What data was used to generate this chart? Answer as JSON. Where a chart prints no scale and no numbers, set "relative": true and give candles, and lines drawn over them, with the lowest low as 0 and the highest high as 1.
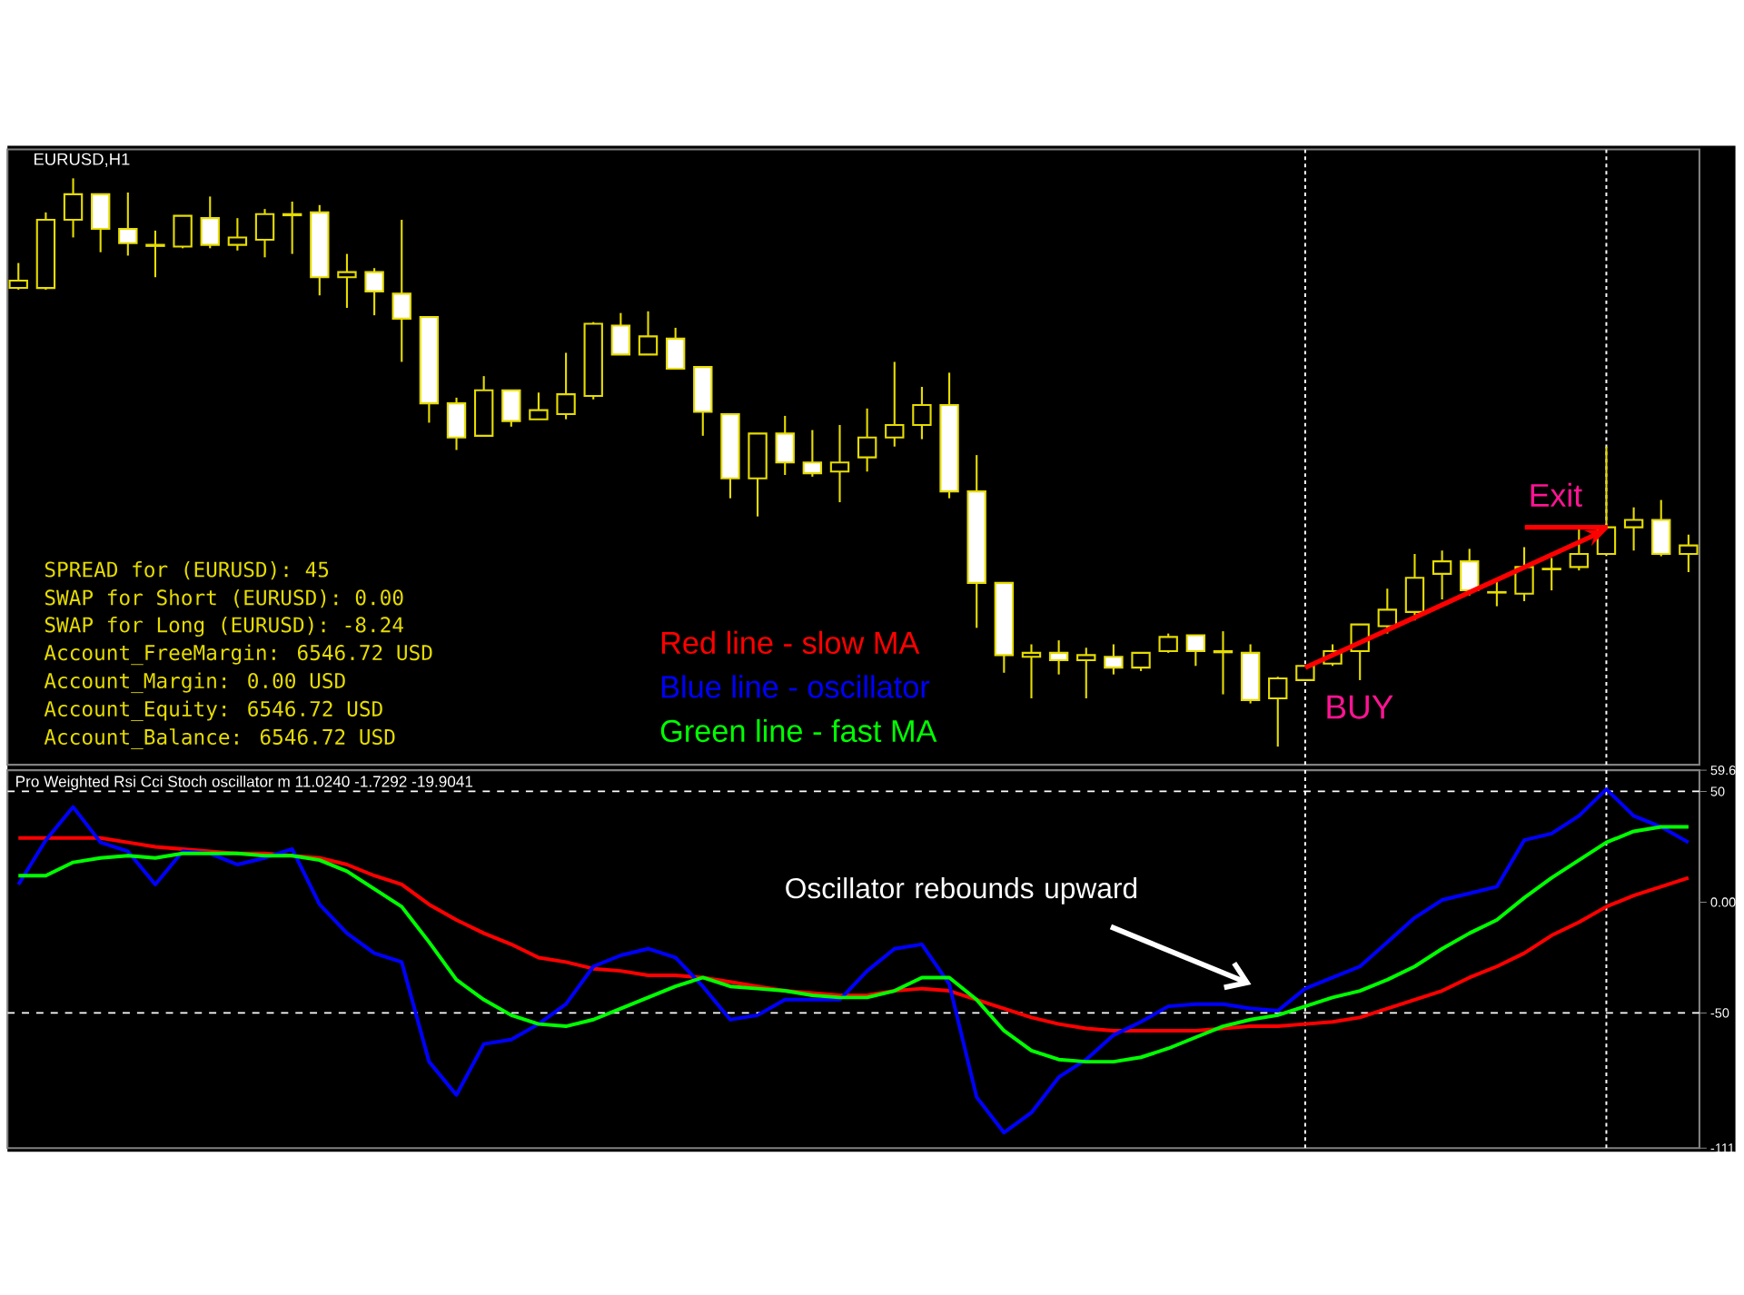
{
  "chart_data": [
    {
      "type": "candlestick",
      "title": "EURUSD,H1",
      "relative": true,
      "categories": [
        null,
        null,
        null,
        null,
        null,
        null,
        null,
        null,
        null,
        null,
        null,
        null,
        null,
        null,
        null,
        null,
        null,
        null,
        null,
        null,
        null,
        null,
        null,
        null,
        null,
        null,
        null,
        null,
        null,
        null,
        null,
        null,
        null,
        null,
        null,
        null,
        null,
        null,
        null,
        null,
        null,
        null,
        null,
        null,
        null,
        null,
        null,
        null,
        null,
        null,
        null,
        null,
        null,
        null,
        null,
        null,
        null,
        null,
        null,
        null,
        null,
        null
      ],
      "ohlc": [
        [
          0.807,
          0.851,
          0.804,
          0.82
        ],
        [
          0.807,
          0.94,
          0.804,
          0.927
        ],
        [
          0.927,
          1,
          0.896,
          0.972
        ],
        [
          0.972,
          0.972,
          0.87,
          0.911
        ],
        [
          0.911,
          0.975,
          0.864,
          0.886
        ],
        [
          0.883,
          0.908,
          0.826,
          0.881
        ],
        [
          0.88,
          0.934,
          0.877,
          0.934
        ],
        [
          0.93,
          0.968,
          0.877,
          0.883
        ],
        [
          0.883,
          0.93,
          0.873,
          0.896
        ],
        [
          0.892,
          0.946,
          0.861,
          0.937
        ],
        [
          0.937,
          0.959,
          0.867,
          0.935
        ],
        [
          0.94,
          0.953,
          0.794,
          0.826
        ],
        [
          0.826,
          0.867,
          0.772,
          0.835
        ],
        [
          0.835,
          0.842,
          0.759,
          0.801
        ],
        [
          0.797,
          0.927,
          0.677,
          0.753
        ],
        [
          0.756,
          0.756,
          0.57,
          0.604
        ],
        [
          0.604,
          0.614,
          0.522,
          0.544
        ],
        [
          0.547,
          0.652,
          0.547,
          0.627
        ],
        [
          0.627,
          0.627,
          0.563,
          0.573
        ],
        [
          0.576,
          0.623,
          0.576,
          0.592
        ],
        [
          0.585,
          0.693,
          0.576,
          0.62
        ],
        [
          0.617,
          0.747,
          0.611,
          0.744
        ],
        [
          0.741,
          0.763,
          0.69,
          0.69
        ],
        [
          0.69,
          0.766,
          0.69,
          0.722
        ],
        [
          0.718,
          0.737,
          0.665,
          0.665
        ],
        [
          0.668,
          0.668,
          0.547,
          0.589
        ],
        [
          0.585,
          0.585,
          0.437,
          0.472
        ],
        [
          0.472,
          0.551,
          0.405,
          0.551
        ],
        [
          0.551,
          0.582,
          0.478,
          0.5
        ],
        [
          0.5,
          0.557,
          0.475,
          0.481
        ],
        [
          0.484,
          0.566,
          0.43,
          0.5
        ],
        [
          0.509,
          0.595,
          0.484,
          0.544
        ],
        [
          0.544,
          0.677,
          0.528,
          0.566
        ],
        [
          0.566,
          0.633,
          0.541,
          0.601
        ],
        [
          0.601,
          0.658,
          0.437,
          0.449
        ],
        [
          0.449,
          0.513,
          0.209,
          0.288
        ],
        [
          0.288,
          0.288,
          0.13,
          0.161
        ],
        [
          0.158,
          0.18,
          0.085,
          0.165
        ],
        [
          0.165,
          0.187,
          0.127,
          0.152
        ],
        [
          0.152,
          0.174,
          0.085,
          0.161
        ],
        [
          0.158,
          0.18,
          0.127,
          0.139
        ],
        [
          0.139,
          0.165,
          0.133,
          0.165
        ],
        [
          0.168,
          0.199,
          0.165,
          0.193
        ],
        [
          0.196,
          0.196,
          0.142,
          0.168
        ],
        [
          0.168,
          0.203,
          0.092,
          0.166
        ],
        [
          0.165,
          0.18,
          0.076,
          0.082
        ],
        [
          0.085,
          0.123,
          0,
          0.12
        ],
        [
          0.117,
          0.142,
          0.117,
          0.142
        ],
        [
          0.146,
          0.18,
          0.142,
          0.168
        ],
        [
          0.168,
          0.215,
          0.117,
          0.215
        ],
        [
          0.212,
          0.278,
          0.199,
          0.241
        ],
        [
          0.237,
          0.339,
          0.222,
          0.297
        ],
        [
          0.304,
          0.345,
          0.259,
          0.326
        ],
        [
          0.326,
          0.348,
          0.266,
          0.275
        ],
        [
          0.272,
          0.291,
          0.247,
          0.271
        ],
        [
          0.269,
          0.351,
          0.256,
          0.316
        ],
        [
          0.312,
          0.332,
          0.275,
          0.313
        ],
        [
          0.316,
          0.383,
          0.31,
          0.339
        ],
        [
          0.339,
          0.528,
          0.339,
          0.386
        ],
        [
          0.386,
          0.421,
          0.345,
          0.399
        ],
        [
          0.399,
          0.434,
          0.335,
          0.339
        ],
        [
          0.339,
          0.373,
          0.307,
          0.354
        ]
      ],
      "annotations": [
        "SPREAD for (EURUSD): 45",
        "SWAP for Short (EURUSD): 0.00",
        "SWAP for Long (EURUSD): -8.24",
        "Account_FreeMargin: 6546.72 USD",
        "Account_Margin: 0.00 USD",
        "Account_Equity: 6546.72 USD",
        "Account_Balance: 6546.72 USD",
        "BUY",
        "Exit"
      ]
    },
    {
      "type": "line",
      "title": "Pro Weighted Rsi Cci Stoch oscillator m 11.0240 -1.7292 -19.9041",
      "categories": [
        null,
        null,
        null,
        null,
        null,
        null,
        null,
        null,
        null,
        null,
        null,
        null,
        null,
        null,
        null,
        null,
        null,
        null,
        null,
        null,
        null,
        null,
        null,
        null,
        null,
        null,
        null,
        null,
        null,
        null,
        null,
        null,
        null,
        null,
        null,
        null,
        null,
        null,
        null,
        null,
        null,
        null,
        null,
        null,
        null,
        null,
        null,
        null,
        null,
        null,
        null,
        null,
        null,
        null,
        null,
        null,
        null,
        null,
        null,
        null,
        null,
        null
      ],
      "ylim": [
        -111,
        59.6
      ],
      "yticks": [
        59.6,
        50,
        {
          "value": 0,
          "label": "0.00"
        },
        -50,
        -111
      ],
      "tick_labels": "y",
      "legend": "top",
      "series": [
        {
          "name": "Red line - slow MA",
          "color": "#ff0000",
          "values": [
            29,
            29,
            29,
            29,
            27,
            25,
            24,
            23,
            22,
            22,
            21,
            20,
            17,
            12,
            8,
            -1,
            -8,
            -14,
            -19,
            -25,
            -27,
            -30,
            -31,
            -33,
            -33,
            -34,
            -36,
            -38,
            -40,
            -41,
            -42,
            -42,
            -40,
            -39,
            -40,
            -44,
            -48,
            -52,
            -55,
            -57,
            -58,
            -58,
            -58,
            -58,
            -57,
            -56,
            -56,
            -55,
            -54,
            -52,
            -48,
            -44,
            -40,
            -34,
            -29,
            -23,
            -15,
            -9,
            -2,
            3,
            7,
            11
          ]
        },
        {
          "name": "Blue line - oscillator",
          "color": "#0000ff",
          "values": [
            8,
            28,
            43,
            27,
            23,
            8,
            23,
            22,
            17,
            20,
            24,
            -1,
            -14,
            -23,
            -27,
            -72,
            -87,
            -64,
            -62,
            -55,
            -46,
            -29,
            -24,
            -21,
            -25,
            -38,
            -53,
            -51,
            -44,
            -44,
            -44,
            -31,
            -21,
            -19,
            -37,
            -88,
            -104,
            -95,
            -79,
            -71,
            -60,
            -54,
            -47,
            -46,
            -46,
            -48,
            -49,
            -39,
            -34,
            -29,
            -18,
            -7,
            1,
            4,
            7,
            28,
            31,
            39,
            51,
            39,
            34,
            27
          ]
        },
        {
          "name": "Green line - fast MA",
          "color": "#00ff00",
          "values": [
            12,
            12,
            18,
            20,
            21,
            20,
            22,
            22,
            22,
            21,
            21,
            19,
            14,
            6,
            -2,
            -18,
            -35,
            -44,
            -51,
            -55,
            -56,
            -53,
            -48,
            -43,
            -38,
            -34,
            -38,
            -39,
            -40,
            -42,
            -43,
            -43,
            -40,
            -34,
            -34,
            -44,
            -58,
            -67,
            -71,
            -72,
            -72,
            -70,
            -66,
            -61,
            -56,
            -53,
            -51,
            -47,
            -43,
            -40,
            -35,
            -29,
            -21,
            -14,
            -8,
            2,
            11,
            19,
            27,
            32,
            34,
            34
          ]
        }
      ],
      "annotations": [
        "Oscillator rebounds upward"
      ],
      "ref_lines": [
        {
          "axis": "y",
          "value": 50,
          "color": "#ffffff",
          "line_style": "dashed"
        },
        {
          "axis": "y",
          "value": -50,
          "color": "#ffffff",
          "line_style": "dashed"
        }
      ]
    }
  ]
}
